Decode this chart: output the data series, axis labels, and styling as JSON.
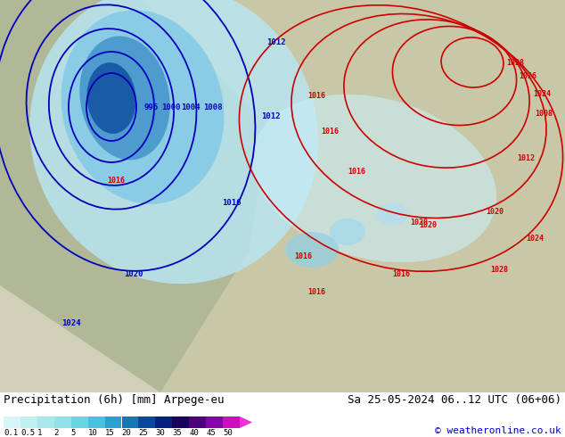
{
  "title_left": "Precipitation (6h) [mm] Arpege-eu",
  "title_right": "Sa 25-05-2024 06..12 UTC (06+06)",
  "copyright": "© weatheronline.co.uk",
  "colorbar_labels": [
    "0.1",
    "0.5",
    "1",
    "2",
    "5",
    "10",
    "15",
    "20",
    "25",
    "30",
    "35",
    "40",
    "45",
    "50"
  ],
  "colorbar_colors": [
    "#d8f5f5",
    "#c0efef",
    "#a8e8ea",
    "#90e2e8",
    "#68d4e4",
    "#48c0de",
    "#28a0d0",
    "#1478b8",
    "#0848a0",
    "#042080",
    "#180060",
    "#4c0080",
    "#8800a8",
    "#cc10c0",
    "#ee30d8"
  ],
  "fig_width": 6.34,
  "fig_height": 4.9,
  "dpi": 100,
  "bottom_bg": "#ffffff",
  "map_bg": "#b8b89a",
  "text_color": "#000000",
  "copyright_color": "#0000cc"
}
